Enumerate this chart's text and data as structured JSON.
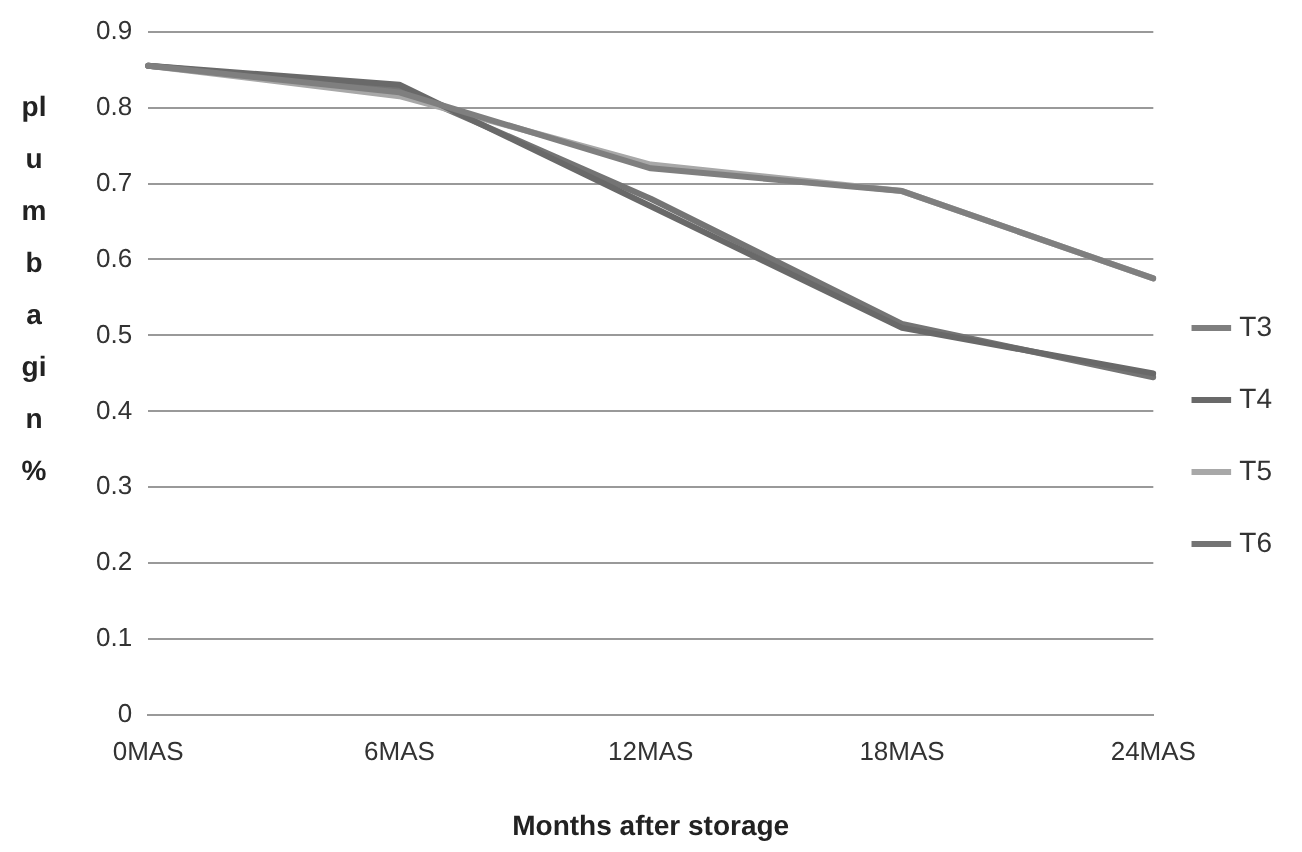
{
  "chart_data": {
    "type": "line",
    "xlabel": "Months after storage",
    "ylabel": "plumbagin %",
    "categories": [
      "0MAS",
      "6MAS",
      "12MAS",
      "18MAS",
      "24MAS"
    ],
    "series": [
      {
        "name": "T3",
        "color": "#7f7f7f",
        "values": [
          0.855,
          0.82,
          0.72,
          0.69,
          0.575
        ]
      },
      {
        "name": "T4",
        "color": "#696969",
        "values": [
          0.855,
          0.83,
          0.67,
          0.51,
          0.45
        ]
      },
      {
        "name": "T5",
        "color": "#a8a8a8",
        "values": [
          0.855,
          0.815,
          0.725,
          0.69,
          0.575
        ]
      },
      {
        "name": "T6",
        "color": "#747474",
        "values": [
          0.855,
          0.825,
          0.68,
          0.515,
          0.445
        ]
      }
    ],
    "ylim": [
      0,
      0.9
    ],
    "yticks": [
      0,
      0.1,
      0.2,
      0.3,
      0.4,
      0.5,
      0.6,
      0.7,
      0.8,
      0.9
    ],
    "grid": "y",
    "legend": "right",
    "marker": "none",
    "line_style": "solid"
  }
}
